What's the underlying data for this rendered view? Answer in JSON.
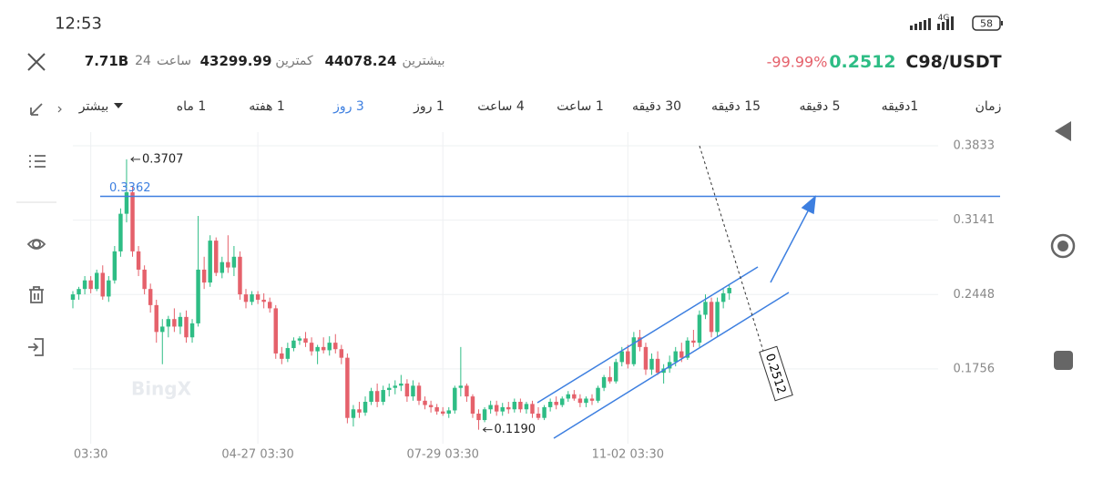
{
  "status_bar": {
    "time": "12:53",
    "network": "4G",
    "battery": "58"
  },
  "header": {
    "volume": "7.71B",
    "period_value": "24",
    "period_unit": "ساعت",
    "low": "43299.99",
    "low_label": "کمترین",
    "high": "44078.24",
    "high_label": "بیشترین",
    "change": "-99.99%",
    "price": "0.2512",
    "symbol": "C98/USDT"
  },
  "tabs": {
    "items": [
      "زمان",
      "1دقیقه",
      "5 دقیقه",
      "15 دقیقه",
      "30 دقیقه",
      "1 ساعت",
      "4 ساعت",
      "1 روز",
      "3 روز",
      "1 هفته",
      "1 ماه",
      "بیشتر"
    ],
    "active": 8,
    "active_color": "#3d7fe0"
  },
  "chart_data": {
    "type": "candlestick",
    "watermark": "BingX",
    "up_color": "#2ebd85",
    "down_color": "#e5616b",
    "open": [
      0.24,
      0.245,
      0.25,
      0.258,
      0.25,
      0.265,
      0.243,
      0.258,
      0.285,
      0.32,
      0.34,
      0.285,
      0.268,
      0.25,
      0.235,
      0.21,
      0.215,
      0.222,
      0.215,
      0.224,
      0.205,
      0.218,
      0.268,
      0.256,
      0.295,
      0.265,
      0.275,
      0.27,
      0.28,
      0.245,
      0.238,
      0.245,
      0.24,
      0.238,
      0.232,
      0.19,
      0.185,
      0.195,
      0.202,
      0.204,
      0.2,
      0.192,
      0.196,
      0.193,
      0.2,
      0.194,
      0.186,
      0.13,
      0.138,
      0.135,
      0.145,
      0.155,
      0.145,
      0.156,
      0.158,
      0.16,
      0.162,
      0.15,
      0.16,
      0.146,
      0.142,
      0.14,
      0.136,
      0.134,
      0.137,
      0.158,
      0.16,
      0.15,
      0.134,
      0.128,
      0.138,
      0.142,
      0.136,
      0.14,
      0.138,
      0.145,
      0.138,
      0.143,
      0.134,
      0.13,
      0.14,
      0.145,
      0.142,
      0.148,
      0.152,
      0.148,
      0.144,
      0.148,
      0.146,
      0.158,
      0.168,
      0.164,
      0.182,
      0.192,
      0.18,
      0.205,
      0.196,
      0.175,
      0.185,
      0.172,
      0.176,
      0.182,
      0.192,
      0.186,
      0.202,
      0.2,
      0.226,
      0.238,
      0.21,
      0.238,
      0.246
    ],
    "high": [
      0.248,
      0.252,
      0.262,
      0.262,
      0.268,
      0.272,
      0.262,
      0.29,
      0.325,
      0.3707,
      0.345,
      0.29,
      0.272,
      0.255,
      0.24,
      0.222,
      0.225,
      0.232,
      0.228,
      0.23,
      0.222,
      0.318,
      0.28,
      0.3,
      0.298,
      0.28,
      0.3,
      0.29,
      0.285,
      0.25,
      0.248,
      0.248,
      0.246,
      0.242,
      0.235,
      0.196,
      0.2,
      0.205,
      0.206,
      0.21,
      0.205,
      0.198,
      0.205,
      0.206,
      0.208,
      0.198,
      0.19,
      0.142,
      0.145,
      0.15,
      0.158,
      0.162,
      0.16,
      0.162,
      0.165,
      0.17,
      0.166,
      0.165,
      0.163,
      0.15,
      0.146,
      0.143,
      0.14,
      0.14,
      0.16,
      0.196,
      0.162,
      0.152,
      0.138,
      0.14,
      0.146,
      0.146,
      0.144,
      0.145,
      0.148,
      0.148,
      0.145,
      0.146,
      0.14,
      0.142,
      0.148,
      0.15,
      0.15,
      0.155,
      0.156,
      0.152,
      0.15,
      0.152,
      0.16,
      0.17,
      0.178,
      0.185,
      0.196,
      0.198,
      0.21,
      0.212,
      0.2,
      0.19,
      0.192,
      0.18,
      0.188,
      0.196,
      0.2,
      0.205,
      0.212,
      0.23,
      0.245,
      0.242,
      0.242,
      0.25,
      0.254
    ],
    "low": [
      0.232,
      0.24,
      0.245,
      0.246,
      0.248,
      0.24,
      0.238,
      0.255,
      0.28,
      0.312,
      0.28,
      0.262,
      0.245,
      0.228,
      0.2,
      0.18,
      0.205,
      0.21,
      0.208,
      0.2,
      0.2,
      0.215,
      0.25,
      0.252,
      0.262,
      0.26,
      0.265,
      0.262,
      0.24,
      0.232,
      0.235,
      0.236,
      0.232,
      0.228,
      0.185,
      0.18,
      0.182,
      0.192,
      0.198,
      0.196,
      0.188,
      0.18,
      0.19,
      0.188,
      0.19,
      0.18,
      0.125,
      0.122,
      0.13,
      0.132,
      0.142,
      0.14,
      0.142,
      0.15,
      0.152,
      0.155,
      0.145,
      0.146,
      0.142,
      0.138,
      0.135,
      0.133,
      0.132,
      0.13,
      0.134,
      0.15,
      0.145,
      0.13,
      0.119,
      0.126,
      0.134,
      0.132,
      0.132,
      0.134,
      0.135,
      0.135,
      0.134,
      0.13,
      0.128,
      0.128,
      0.136,
      0.138,
      0.14,
      0.145,
      0.146,
      0.14,
      0.14,
      0.142,
      0.144,
      0.155,
      0.162,
      0.162,
      0.178,
      0.176,
      0.178,
      0.192,
      0.17,
      0.17,
      0.17,
      0.162,
      0.172,
      0.178,
      0.182,
      0.184,
      0.196,
      0.196,
      0.222,
      0.205,
      0.206,
      0.232,
      0.24
    ],
    "close": [
      0.245,
      0.25,
      0.258,
      0.25,
      0.265,
      0.243,
      0.258,
      0.285,
      0.32,
      0.34,
      0.285,
      0.268,
      0.25,
      0.235,
      0.21,
      0.215,
      0.222,
      0.215,
      0.224,
      0.205,
      0.218,
      0.268,
      0.256,
      0.295,
      0.265,
      0.275,
      0.27,
      0.28,
      0.245,
      0.238,
      0.245,
      0.24,
      0.238,
      0.232,
      0.19,
      0.185,
      0.195,
      0.202,
      0.204,
      0.2,
      0.192,
      0.196,
      0.193,
      0.2,
      0.194,
      0.186,
      0.13,
      0.138,
      0.135,
      0.145,
      0.155,
      0.145,
      0.156,
      0.158,
      0.16,
      0.162,
      0.15,
      0.16,
      0.146,
      0.142,
      0.14,
      0.136,
      0.134,
      0.137,
      0.158,
      0.16,
      0.15,
      0.134,
      0.128,
      0.138,
      0.142,
      0.136,
      0.14,
      0.138,
      0.145,
      0.138,
      0.143,
      0.134,
      0.13,
      0.14,
      0.145,
      0.142,
      0.148,
      0.152,
      0.148,
      0.144,
      0.148,
      0.146,
      0.158,
      0.168,
      0.164,
      0.182,
      0.192,
      0.18,
      0.205,
      0.196,
      0.175,
      0.185,
      0.172,
      0.176,
      0.182,
      0.192,
      0.186,
      0.202,
      0.2,
      0.226,
      0.238,
      0.21,
      0.238,
      0.246,
      0.251
    ],
    "xlim": [
      0,
      145
    ],
    "xticks": [
      {
        "value": 3,
        "label": "03:30"
      },
      {
        "value": 31,
        "label": "04-27 03:30"
      },
      {
        "value": 62,
        "label": "07-29 03:30"
      },
      {
        "value": 93,
        "label": "11-02 03:30"
      }
    ],
    "ylim": [
      0.106,
      0.396
    ],
    "yticks": [
      0.1756,
      0.2448,
      0.3141,
      0.3833
    ],
    "grid": true,
    "max_label": "0.3707",
    "min_label": "0.1190",
    "hline": {
      "value": 0.3362,
      "label": "0.3362",
      "color": "#3d7fe0"
    },
    "last_price": "0.2512"
  }
}
